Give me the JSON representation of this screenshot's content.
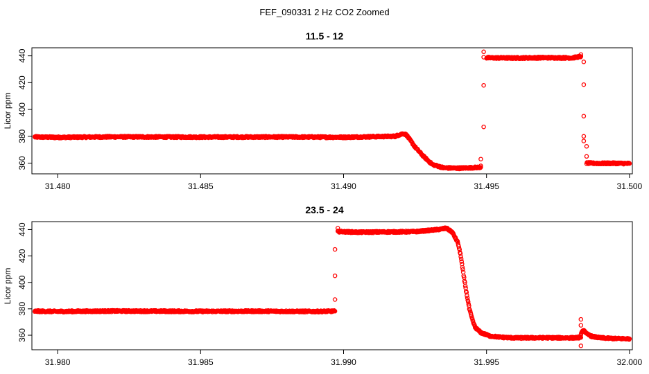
{
  "figure": {
    "title": "FEF_090331  2 Hz CO2 Zoomed"
  },
  "colors": {
    "points": "#ff0000",
    "axes": "#000000"
  },
  "chart_data": [
    {
      "type": "scatter",
      "title": "11.5 - 12",
      "xlabel": "",
      "ylabel": "Licor ppm",
      "xlim": [
        31.4791,
        31.5001
      ],
      "ylim": [
        352,
        446
      ],
      "xticks": [
        31.48,
        31.485,
        31.49,
        31.495,
        31.5
      ],
      "xtick_labels": [
        "31.480",
        "31.485",
        "31.490",
        "31.495",
        "31.500"
      ],
      "yticks": [
        360,
        380,
        400,
        420,
        440
      ],
      "ytick_labels": [
        "360",
        "380",
        "400",
        "420",
        "440"
      ],
      "marker": "open-circle",
      "grid": false,
      "segments": [
        {
          "x": [
            31.4792,
            31.48,
            31.482,
            31.485,
            31.488,
            31.49,
            31.4918,
            31.492,
            31.4921,
            31.4922,
            31.4923,
            31.4925,
            31.4928,
            31.4931,
            31.4935,
            31.494,
            31.4945,
            31.4948
          ],
          "y": [
            379.5,
            379.2,
            379.6,
            379.4,
            379.5,
            379.3,
            380.0,
            381.5,
            382.0,
            381.0,
            378.0,
            372.0,
            365.0,
            359.0,
            356.5,
            356.2,
            356.6,
            356.9
          ]
        },
        {
          "x": [
            31.495,
            31.496,
            31.497,
            31.498,
            31.4983
          ],
          "y": [
            438.5,
            438.4,
            438.6,
            438.5,
            439.5
          ]
        },
        {
          "x": [
            31.4985,
            31.499,
            31.4995,
            31.5
          ],
          "y": [
            360.0,
            359.8,
            359.9,
            359.7
          ]
        }
      ],
      "outliers": {
        "x": [
          31.4948,
          31.4948,
          31.4949,
          31.4949,
          31.4949,
          31.4949,
          31.4983,
          31.4984,
          31.4984,
          31.4984,
          31.4984,
          31.4984,
          31.4985,
          31.4985
        ],
        "y": [
          363.0,
          358.0,
          387.0,
          418.0,
          443.0,
          439.0,
          441.0,
          435.5,
          418.5,
          395.0,
          380.0,
          376.5,
          372.5,
          365.0
        ]
      }
    },
    {
      "type": "scatter",
      "title": "23.5 - 24",
      "xlabel": "",
      "ylabel": "Licor ppm",
      "xlim": [
        31.9791,
        32.0001
      ],
      "ylim": [
        349,
        446
      ],
      "xticks": [
        31.98,
        31.985,
        31.99,
        31.995,
        32.0
      ],
      "xtick_labels": [
        "31.980",
        "31.985",
        "31.990",
        "31.995",
        "32.000"
      ],
      "yticks": [
        360,
        380,
        400,
        420,
        440
      ],
      "ytick_labels": [
        "360",
        "380",
        "400",
        "420",
        "440"
      ],
      "marker": "open-circle",
      "grid": false,
      "segments": [
        {
          "x": [
            31.9792,
            31.98,
            31.982,
            31.985,
            31.987,
            31.989,
            31.9897
          ],
          "y": [
            378.2,
            378.0,
            378.3,
            378.1,
            378.2,
            378.0,
            378.2
          ]
        },
        {
          "x": [
            31.9898,
            31.9905,
            31.9915,
            31.9925,
            31.9933,
            31.9936,
            31.9938,
            31.994,
            31.9941,
            31.9942,
            31.9943,
            31.9944,
            31.9945,
            31.9946,
            31.9948,
            31.9951,
            31.9955,
            31.996,
            31.997,
            31.998,
            31.9983
          ],
          "y": [
            438.5,
            438.0,
            438.2,
            438.4,
            440.0,
            441.0,
            438.0,
            430.0,
            420.0,
            405.0,
            392.0,
            380.0,
            372.0,
            366.0,
            362.0,
            359.5,
            358.5,
            358.0,
            358.1,
            358.0,
            358.3
          ]
        },
        {
          "x": [
            31.9983,
            31.9984,
            31.9985,
            31.9987,
            31.999,
            31.9995,
            32.0
          ],
          "y": [
            361.0,
            364.0,
            361.0,
            359.0,
            358.0,
            357.5,
            357.3
          ]
        }
      ],
      "outliers": {
        "x": [
          31.9897,
          31.9897,
          31.9897,
          31.9898,
          31.9983,
          31.9983,
          31.9983
        ],
        "y": [
          387.0,
          405.0,
          425.0,
          441.0,
          372.0,
          367.5,
          352.0
        ]
      }
    }
  ]
}
